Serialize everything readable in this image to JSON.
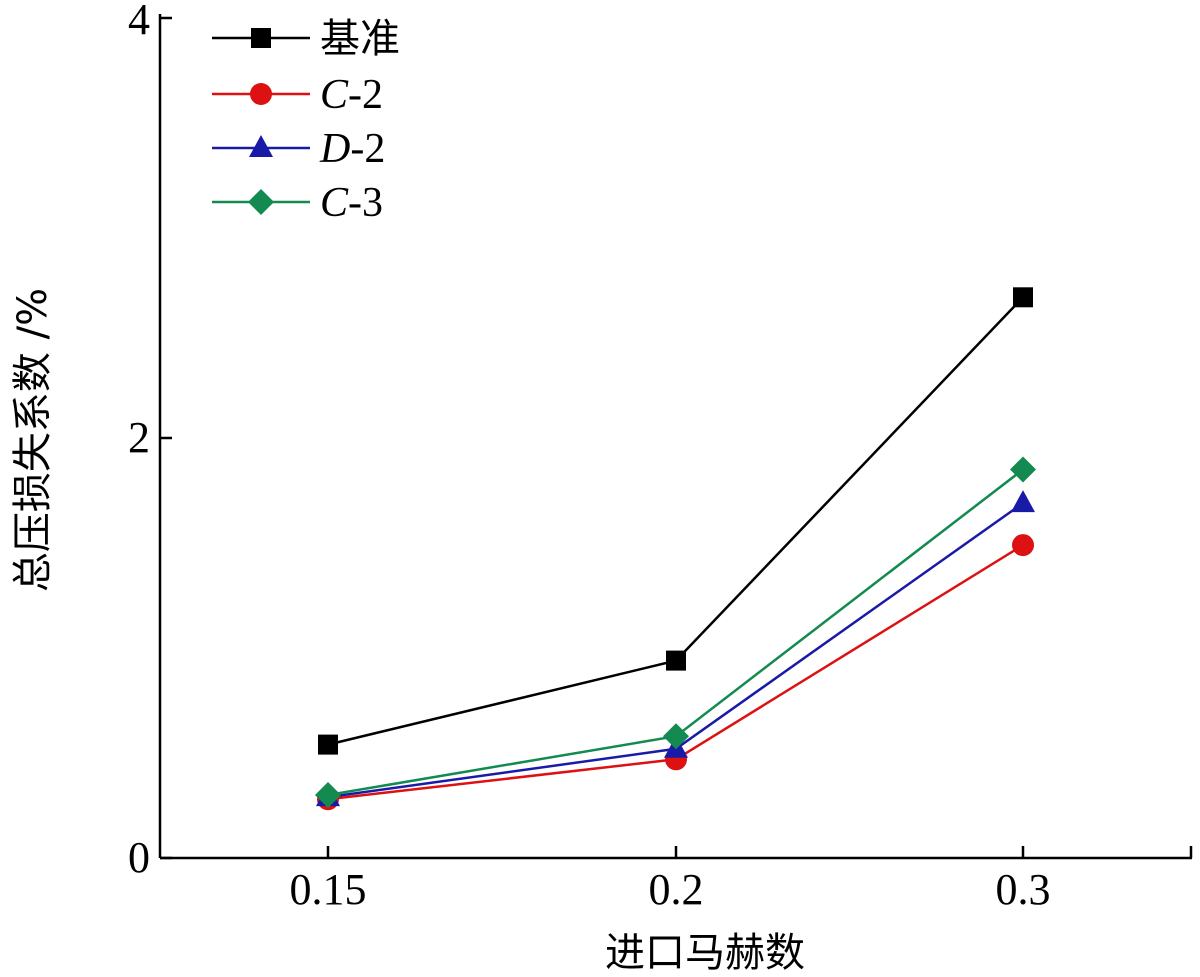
{
  "chart_data": {
    "type": "line",
    "title": "",
    "xlabel": "进口马赫数",
    "ylabel": "总压损失系数 /%",
    "x": [
      "0.15",
      "0.2",
      "0.3"
    ],
    "xtick_labels": [
      "0.15",
      "0.2",
      "0.3"
    ],
    "yticks": [
      0,
      2,
      4
    ],
    "ytick_labels": [
      "0",
      "2",
      "4"
    ],
    "ylim": [
      0,
      4
    ],
    "grid": false,
    "legend_position": "top-left",
    "series": [
      {
        "name": "基准",
        "label_italic": "",
        "label_rest": "基准",
        "marker": "square",
        "color": "#000000",
        "values": [
          0.54,
          0.94,
          2.67
        ]
      },
      {
        "name": "C-2",
        "label_italic": "C",
        "label_rest": "-2",
        "marker": "circle",
        "color": "#dd1111",
        "values": [
          0.28,
          0.47,
          1.49
        ]
      },
      {
        "name": "D-2",
        "label_italic": "D",
        "label_rest": "-2",
        "marker": "triangle",
        "color": "#1a1aa8",
        "values": [
          0.29,
          0.52,
          1.69
        ]
      },
      {
        "name": "C-3",
        "label_italic": "C",
        "label_rest": "-3",
        "marker": "diamond",
        "color": "#138a50",
        "values": [
          0.3,
          0.58,
          1.85
        ]
      }
    ]
  }
}
